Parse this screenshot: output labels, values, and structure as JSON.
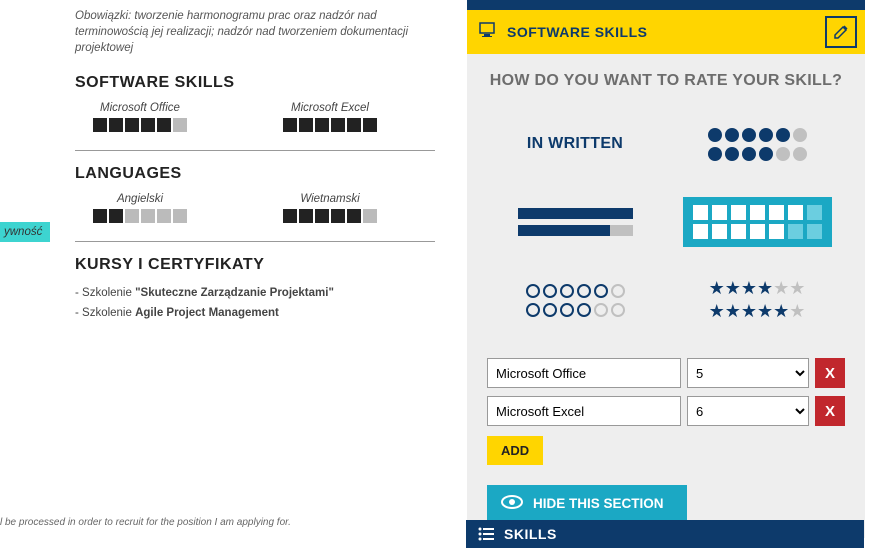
{
  "left": {
    "duties": "Obowiązki: tworzenie harmonogramu prac oraz nadzór nad terminowością jej realizacji; nadzór nad tworzeniem dokumentacji projektowej",
    "software_title": "SOFTWARE SKILLS",
    "languages_title": "LANGUAGES",
    "courses_title": "KURSY I CERTYFIKATY",
    "software": [
      {
        "name": "Microsoft Office",
        "filled": 5,
        "total": 6
      },
      {
        "name": "Microsoft Excel",
        "filled": 6,
        "total": 6
      }
    ],
    "languages": [
      {
        "name": "Angielski",
        "filled": 2,
        "total": 6
      },
      {
        "name": "Wietnamski",
        "filled": 5,
        "total": 6
      }
    ],
    "course_prefix": "- Szkolenie ",
    "course1_bold": "\"Skuteczne Zarządzanie Projektami\"",
    "course2_bold": "Agile Project Management",
    "footer": "l be processed in order to recruit for the position I am applying for.",
    "tag": "ywność"
  },
  "right": {
    "header_title": "SOFTWARE SKILLS",
    "question": "HOW DO YOU WANT TO RATE YOUR SKILL?",
    "in_written": "IN WRITTEN",
    "rows": [
      {
        "name": "Microsoft Office",
        "value": "5"
      },
      {
        "name": "Microsoft Excel",
        "value": "6"
      }
    ],
    "add_label": "ADD",
    "hide_label": "HIDE THIS SECTION",
    "skills_bar": "SKILLS"
  },
  "colors": {
    "navy": "#0d3a6b",
    "yellow": "#ffd500",
    "teal": "#1ba8c4",
    "red": "#c1272d",
    "gray": "#c0c0c0"
  }
}
